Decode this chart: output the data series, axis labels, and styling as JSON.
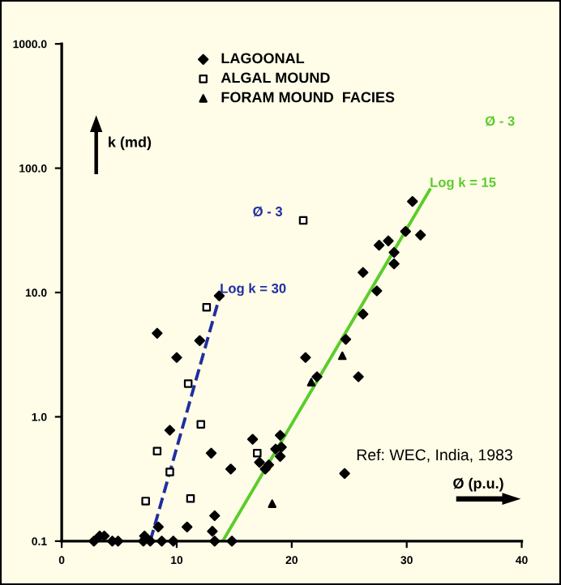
{
  "chart_data": {
    "type": "scatter",
    "log": "y",
    "xlabel": "Ø (p.u.)",
    "ylabel": "k (md)",
    "xlim": [
      0,
      40
    ],
    "ylim": [
      0.1,
      1000
    ],
    "xticks": [
      0,
      10,
      20,
      30,
      40
    ],
    "yticks": [
      {
        "value": 0.1,
        "label": "0.1"
      },
      {
        "value": 1,
        "label": "1.0"
      },
      {
        "value": 10,
        "label": "10.0"
      },
      {
        "value": 100,
        "label": "100.0"
      },
      {
        "value": 1000,
        "label": "1000.0"
      }
    ],
    "grid": false,
    "legend": "top",
    "series": [
      {
        "name": "LAGOONAL",
        "color": "#000000",
        "marker": "diamond",
        "x": [
          8.3,
          12.0,
          10.0,
          13.7,
          9.4,
          13.0,
          14.7,
          13.3,
          10.9,
          8.4,
          7.2,
          13.1,
          3.3,
          3.7,
          2.8,
          4.4,
          4.9,
          7.1,
          7.7,
          8.7,
          9.7,
          13.3,
          14.8,
          16.6,
          19.0,
          17.2,
          18.0,
          17.7,
          18.6,
          19.1,
          19.0,
          21.2,
          22.2,
          24.7,
          25.8,
          26.2,
          27.4,
          24.6,
          30.5,
          29.9,
          31.2,
          27.6,
          28.4,
          28.9,
          28.9,
          26.2
        ],
        "values": [
          4.7,
          4.1,
          3.0,
          9.4,
          0.78,
          0.51,
          0.38,
          0.16,
          0.13,
          0.13,
          0.11,
          0.12,
          0.11,
          0.11,
          0.1,
          0.1,
          0.1,
          0.1,
          0.1,
          0.1,
          0.1,
          0.1,
          0.1,
          0.66,
          0.71,
          0.43,
          0.41,
          0.38,
          0.55,
          0.57,
          0.48,
          3.0,
          2.1,
          4.2,
          2.1,
          6.7,
          10.3,
          0.35,
          54,
          31,
          29,
          24,
          26,
          21,
          17,
          14.5
        ]
      },
      {
        "name": "ALGAL MOUND",
        "color": "#000000",
        "marker": "square",
        "x": [
          12.6,
          11.0,
          12.1,
          8.3,
          9.4,
          7.3,
          11.2,
          17.0,
          21.0
        ],
        "values": [
          7.6,
          1.85,
          0.87,
          0.53,
          0.36,
          0.21,
          0.22,
          0.51,
          38
        ]
      },
      {
        "name": "FORAM MOUND  FACIES",
        "color": "#000000",
        "marker": "triangle",
        "x": [
          24.4,
          21.7,
          18.3
        ],
        "values": [
          3.1,
          1.9,
          0.2
        ]
      },
      {
        "type": "line",
        "color": "#1f2fa0",
        "line_style": "dashed",
        "x": [
          7.7,
          13.75
        ],
        "values": [
          0.1,
          9.4
        ]
      },
      {
        "type": "line",
        "color": "#5ccc2c",
        "line_style": "solid",
        "x": [
          14.0,
          32.0
        ],
        "values": [
          0.1,
          67
        ]
      }
    ],
    "annotations": [
      "Ø - 3",
      {
        "text": "Log k = 30",
        "x": 13.75,
        "y": 9.4
      },
      "Ø - 3",
      {
        "text": "Log k = 15",
        "x": 32.0,
        "y": 67
      },
      "Ref: WEC, India, 1983"
    ]
  }
}
